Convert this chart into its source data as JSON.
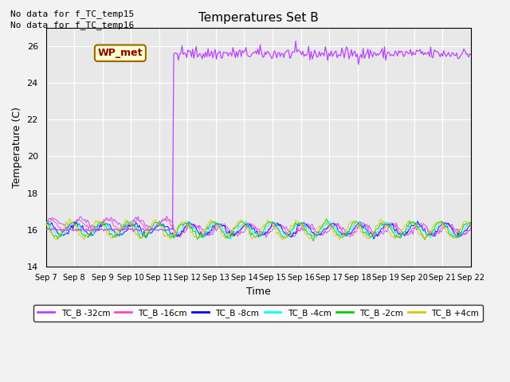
{
  "title": "Temperatures Set B",
  "xlabel": "Time",
  "ylabel": "Temperature (C)",
  "ylim": [
    14,
    27
  ],
  "yticks": [
    14,
    16,
    18,
    20,
    22,
    24,
    26
  ],
  "xtick_labels": [
    "Sep 7",
    "Sep 8",
    "Sep 9",
    "Sep 10",
    "Sep 11",
    "Sep 12",
    "Sep 13",
    "Sep 14",
    "Sep 15",
    "Sep 16",
    "Sep 17",
    "Sep 18",
    "Sep 19",
    "Sep 20",
    "Sep 21",
    "Sep 22"
  ],
  "background_color": "#e8e8e8",
  "fig_bg": "#f2f2f2",
  "annotations": [
    "No data for f_TC_temp15",
    "No data for f_TC_temp16"
  ],
  "wp_met_label": "WP_met",
  "legend_entries": [
    "TC_B -32cm",
    "TC_B -16cm",
    "TC_B -8cm",
    "TC_B -4cm",
    "TC_B -2cm",
    "TC_B +4cm"
  ],
  "series_colors": [
    "#bb44ff",
    "#ff44cc",
    "#0000ee",
    "#00ffff",
    "#00cc00",
    "#cccc00"
  ],
  "wp_met_color": "#bb44ff",
  "num_days": 15,
  "wp_met_jump_day": 4.5,
  "wp_met_base": 16.0,
  "wp_met_high": 25.6,
  "seed": 42
}
